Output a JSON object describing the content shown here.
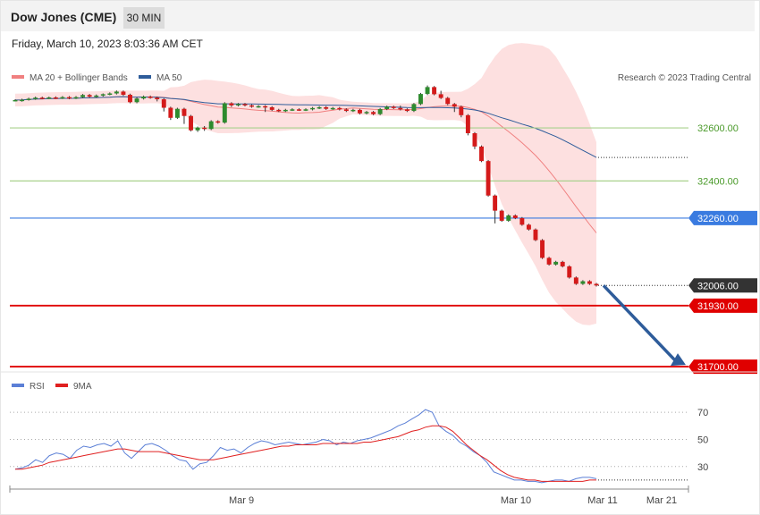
{
  "header": {
    "title": "Dow Jones (CME)",
    "timeframe": "30 MIN"
  },
  "timestamp": "Friday, March 10, 2023 8:03:36 AM CET",
  "legend": {
    "main": [
      {
        "label": "MA 20 + Bollinger Bands",
        "color": "#f08080"
      },
      {
        "label": "MA 50",
        "color": "#2e5c9a"
      }
    ],
    "credit": "Research © 2023 Trading Central",
    "rsi": [
      {
        "label": "RSI",
        "color": "#5b7fd6"
      },
      {
        "label": "9MA",
        "color": "#e02020"
      }
    ]
  },
  "colors": {
    "up": "#2e8b2e",
    "down": "#d41a1a",
    "support": "#e00000",
    "pivot": "#3a7be0",
    "resistance": "#a9d18e",
    "last": "#333333",
    "arrow": "#2e5c9a"
  },
  "chart_data": [
    {
      "type": "candlestick",
      "y_range": [
        31680,
        32880
      ],
      "x_labels": [
        "Mar 9",
        "Mar 10",
        "Mar 11",
        "Mar 21"
      ],
      "levels": [
        {
          "value": 32600,
          "label": "32600.00",
          "kind": "resistance"
        },
        {
          "value": 32400,
          "label": "32400.00",
          "kind": "resistance"
        },
        {
          "value": 32260,
          "label": "32260.00",
          "kind": "pivot"
        },
        {
          "value": 32006,
          "label": "32006.00",
          "kind": "last"
        },
        {
          "value": 31930,
          "label": "31930.00",
          "kind": "support"
        },
        {
          "value": 31700,
          "label": "31700.00",
          "kind": "support"
        }
      ],
      "candles": [
        [
          32702,
          32705,
          32700,
          32708
        ],
        [
          32702,
          32706,
          32699,
          32710
        ],
        [
          32706,
          32710,
          32703,
          32714
        ],
        [
          32710,
          32714,
          32706,
          32718
        ],
        [
          32714,
          32712,
          32708,
          32718
        ],
        [
          32712,
          32715,
          32709,
          32718
        ],
        [
          32715,
          32713,
          32709,
          32719
        ],
        [
          32713,
          32716,
          32709,
          32720
        ],
        [
          32716,
          32712,
          32708,
          32720
        ],
        [
          32712,
          32716,
          32709,
          32720
        ],
        [
          32716,
          32724,
          32712,
          32728
        ],
        [
          32724,
          32718,
          32714,
          32728
        ],
        [
          32718,
          32722,
          32714,
          32726
        ],
        [
          32722,
          32727,
          32718,
          32730
        ],
        [
          32727,
          32730,
          32723,
          32734
        ],
        [
          32730,
          32737,
          32726,
          32741
        ],
        [
          32737,
          32725,
          32721,
          32741
        ],
        [
          32725,
          32697,
          32693,
          32729
        ],
        [
          32697,
          32711,
          32693,
          32715
        ],
        [
          32711,
          32718,
          32707,
          32722
        ],
        [
          32718,
          32714,
          32710,
          32722
        ],
        [
          32714,
          32708,
          32700,
          32718
        ],
        [
          32708,
          32676,
          32662,
          32712
        ],
        [
          32676,
          32638,
          32630,
          32680
        ],
        [
          32638,
          32672,
          32634,
          32676
        ],
        [
          32672,
          32645,
          32615,
          32676
        ],
        [
          32645,
          32591,
          32587,
          32649
        ],
        [
          32591,
          32601,
          32585,
          32605
        ],
        [
          32601,
          32596,
          32589,
          32607
        ],
        [
          32596,
          32625,
          32592,
          32629
        ],
        [
          32625,
          32620,
          32616,
          32629
        ],
        [
          32620,
          32693,
          32616,
          32697
        ],
        [
          32693,
          32685,
          32679,
          32697
        ],
        [
          32685,
          32690,
          32681,
          32694
        ],
        [
          32690,
          32685,
          32681,
          32694
        ],
        [
          32685,
          32680,
          32676,
          32689
        ],
        [
          32680,
          32682,
          32676,
          32686
        ],
        [
          32682,
          32678,
          32660,
          32686
        ],
        [
          32678,
          32668,
          32664,
          32682
        ],
        [
          32668,
          32664,
          32660,
          32672
        ],
        [
          32664,
          32668,
          32660,
          32672
        ],
        [
          32668,
          32670,
          32664,
          32674
        ],
        [
          32670,
          32668,
          32664,
          32674
        ],
        [
          32668,
          32670,
          32664,
          32674
        ],
        [
          32670,
          32675,
          32666,
          32679
        ],
        [
          32675,
          32678,
          32671,
          32682
        ],
        [
          32678,
          32672,
          32668,
          32682
        ],
        [
          32672,
          32675,
          32668,
          32679
        ],
        [
          32675,
          32670,
          32666,
          32679
        ],
        [
          32670,
          32664,
          32660,
          32674
        ],
        [
          32664,
          32668,
          32660,
          32672
        ],
        [
          32668,
          32655,
          32651,
          32672
        ],
        [
          32655,
          32660,
          32651,
          32664
        ],
        [
          32660,
          32652,
          32648,
          32664
        ],
        [
          32652,
          32671,
          32648,
          32675
        ],
        [
          32671,
          32680,
          32667,
          32684
        ],
        [
          32680,
          32675,
          32671,
          32684
        ],
        [
          32675,
          32670,
          32666,
          32684
        ],
        [
          32670,
          32664,
          32660,
          32674
        ],
        [
          32664,
          32690,
          32660,
          32694
        ],
        [
          32690,
          32728,
          32686,
          32732
        ],
        [
          32728,
          32754,
          32724,
          32760
        ],
        [
          32754,
          32727,
          32723,
          32758
        ],
        [
          32727,
          32713,
          32709,
          32740
        ],
        [
          32713,
          32690,
          32686,
          32717
        ],
        [
          32690,
          32680,
          32660,
          32694
        ],
        [
          32680,
          32648,
          32640,
          32684
        ],
        [
          32648,
          32580,
          32572,
          32652
        ],
        [
          32580,
          32530,
          32520,
          32584
        ],
        [
          32530,
          32475,
          32471,
          32534
        ],
        [
          32475,
          32345,
          32341,
          32479
        ],
        [
          32345,
          32288,
          32240,
          32349
        ],
        [
          32288,
          32250,
          32246,
          32292
        ],
        [
          32250,
          32270,
          32246,
          32274
        ],
        [
          32270,
          32260,
          32256,
          32274
        ],
        [
          32260,
          32235,
          32231,
          32264
        ],
        [
          32235,
          32217,
          32213,
          32239
        ],
        [
          32217,
          32177,
          32173,
          32221
        ],
        [
          32177,
          32110,
          32106,
          32181
        ],
        [
          32110,
          32085,
          32081,
          32114
        ],
        [
          32085,
          32095,
          32081,
          32099
        ],
        [
          32095,
          32078,
          32074,
          32099
        ],
        [
          32078,
          32036,
          32032,
          32082
        ],
        [
          32036,
          32012,
          32008,
          32040
        ],
        [
          32012,
          32022,
          32008,
          32026
        ],
        [
          32022,
          32012,
          32008,
          32026
        ],
        [
          32012,
          32006,
          32002,
          32016
        ]
      ]
    },
    {
      "type": "line",
      "name_series": [
        "RSI",
        "9MA"
      ],
      "y_ticks": [
        "70",
        "50",
        "30"
      ],
      "y_values": [
        70,
        50,
        30
      ],
      "y_range": [
        14,
        80
      ],
      "series": [
        {
          "name": "RSI",
          "values": [
            28,
            29,
            31,
            35,
            33,
            38,
            40,
            39,
            36,
            42,
            45,
            44,
            46,
            47,
            45,
            49,
            40,
            36,
            41,
            46,
            47,
            45,
            42,
            38,
            35,
            34,
            28,
            32,
            33,
            38,
            44,
            42,
            43,
            40,
            44,
            47,
            49,
            48,
            46,
            47,
            48,
            47,
            46,
            47,
            48,
            50,
            49,
            46,
            48,
            47,
            49,
            50,
            51,
            53,
            55,
            57,
            60,
            62,
            65,
            68,
            72,
            70,
            60,
            56,
            53,
            48,
            45,
            41,
            38,
            33,
            26,
            24,
            22,
            20,
            20,
            19,
            19,
            18,
            19,
            20,
            20,
            19,
            21,
            22,
            22,
            21
          ]
        },
        {
          "name": "9MA",
          "values": [
            28,
            28,
            29,
            30,
            31,
            33,
            34,
            35,
            36,
            37,
            38,
            39,
            40,
            41,
            42,
            43,
            43,
            42,
            41,
            41,
            41,
            41,
            40,
            39,
            38,
            37,
            36,
            35,
            35,
            35,
            36,
            37,
            38,
            39,
            40,
            41,
            42,
            43,
            44,
            45,
            45,
            46,
            46,
            46,
            46,
            47,
            47,
            47,
            47,
            47,
            47,
            48,
            48,
            49,
            50,
            51,
            52,
            54,
            56,
            57,
            59,
            60,
            60,
            59,
            56,
            51,
            46,
            42,
            38,
            35,
            31,
            27,
            24,
            22,
            21,
            20,
            20,
            19,
            19,
            19,
            19,
            19,
            19,
            19,
            20,
            20
          ]
        }
      ]
    }
  ]
}
